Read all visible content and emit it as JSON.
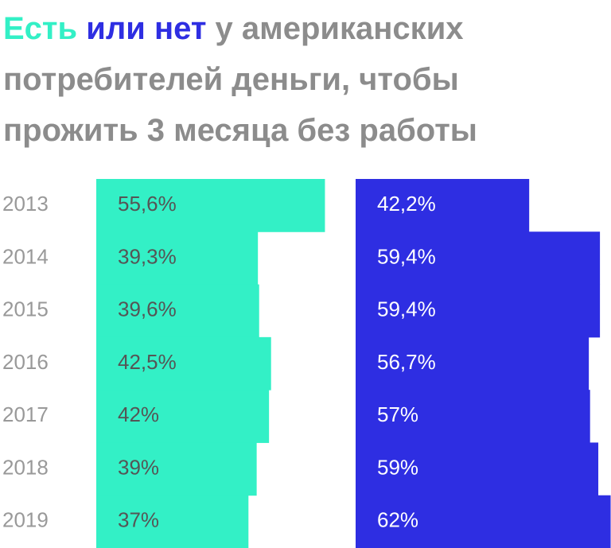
{
  "chart_data": {
    "type": "bar",
    "orientation": "horizontal",
    "title": "у американских потребителей деньги, чтобы прожить 3 месяца без работы",
    "categories": [
      "2013",
      "2014",
      "2015",
      "2016",
      "2017",
      "2018",
      "2019"
    ],
    "series": [
      {
        "name": "Есть",
        "color": "#33f0c6",
        "label_color": "#555555",
        "values": [
          55.6,
          39.3,
          39.6,
          42.5,
          42,
          39,
          37
        ],
        "value_labels": [
          "55,6%",
          "39,3%",
          "39,6%",
          "42,5%",
          "42%",
          "39%",
          "37%"
        ]
      },
      {
        "name": "или нет",
        "color": "#2e2ee2",
        "label_color": "#ffffff",
        "values": [
          42.2,
          59.4,
          59.4,
          56.7,
          57,
          59,
          62
        ],
        "value_labels": [
          "42,2%",
          "59,4%",
          "59,4%",
          "56,7%",
          "57%",
          "59%",
          "62%"
        ]
      }
    ]
  }
}
